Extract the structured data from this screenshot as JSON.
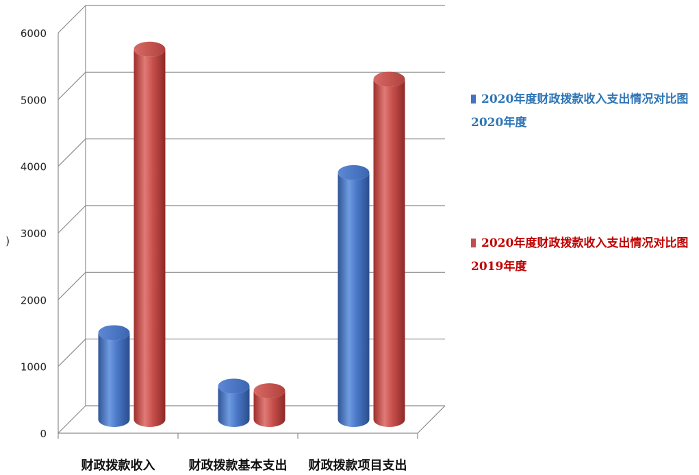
{
  "chart_data": {
    "type": "bar",
    "style": "3d-cylinder",
    "title": "",
    "xlabel": "",
    "ylabel": "",
    "ylim": [
      0,
      6000
    ],
    "yticks": [
      0,
      1000,
      2000,
      3000,
      4000,
      5000,
      6000
    ],
    "ytick_labels": [
      "0",
      "1000",
      "2000",
      "3000",
      "4000",
      "5000",
      "6000"
    ],
    "categories": [
      "财政拨款收入",
      "财政拨款基本支出",
      "财政拨款项目支出"
    ],
    "series": [
      {
        "legend_line1": "2020年度财政拨款收入支出情况对比图",
        "legend_line2": "2020年度",
        "color": "#4472C4",
        "values": [
          1300,
          500,
          3700
        ]
      },
      {
        "legend_line1": "2020年度财政拨款收入支出情况对比图",
        "legend_line2": "2019年度",
        "color": "#C0504D",
        "values": [
          5550,
          430,
          5100
        ]
      }
    ],
    "grid": true,
    "legend_position": "right"
  },
  "edge_mark": ")"
}
